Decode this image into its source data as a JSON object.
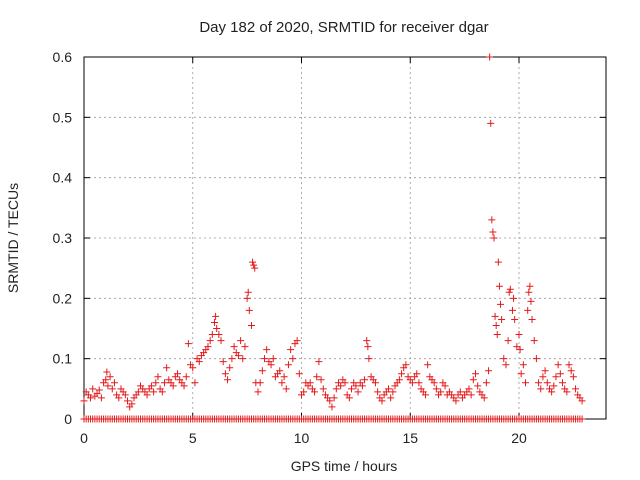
{
  "chart_data": {
    "type": "scatter",
    "title": "Day 182 of 2020, SRMTID for receiver dgar",
    "xlabel": "GPS time / hours",
    "ylabel": "SRMTID / TECUs",
    "xlim": [
      0,
      24
    ],
    "ylim": [
      0,
      0.6
    ],
    "xticks": [
      0,
      5,
      10,
      15,
      20
    ],
    "yticks": [
      0,
      0.1,
      0.2,
      0.3,
      0.4,
      0.5,
      0.6
    ],
    "ytick_labels": [
      "0",
      "0.1",
      "0.2",
      "0.3",
      "0.4",
      "0.5",
      "0.6"
    ],
    "grid": true,
    "marker": "+",
    "series": [
      {
        "name": "SRMTID",
        "color": "#e41a1c",
        "points": [
          [
            0.0,
            0.03
          ],
          [
            0.1,
            0.045
          ],
          [
            0.2,
            0.04
          ],
          [
            0.3,
            0.035
          ],
          [
            0.4,
            0.05
          ],
          [
            0.5,
            0.038
          ],
          [
            0.6,
            0.042
          ],
          [
            0.7,
            0.048
          ],
          [
            0.8,
            0.035
          ],
          [
            0.9,
            0.06
          ],
          [
            1.0,
            0.065
          ],
          [
            1.05,
            0.078
          ],
          [
            1.1,
            0.055
          ],
          [
            1.2,
            0.07
          ],
          [
            1.3,
            0.05
          ],
          [
            1.4,
            0.06
          ],
          [
            1.5,
            0.04
          ],
          [
            1.6,
            0.035
          ],
          [
            1.7,
            0.05
          ],
          [
            1.8,
            0.045
          ],
          [
            1.9,
            0.04
          ],
          [
            2.0,
            0.03
          ],
          [
            2.1,
            0.02
          ],
          [
            2.2,
            0.025
          ],
          [
            2.3,
            0.035
          ],
          [
            2.4,
            0.04
          ],
          [
            2.5,
            0.045
          ],
          [
            2.6,
            0.055
          ],
          [
            2.7,
            0.05
          ],
          [
            2.8,
            0.045
          ],
          [
            2.9,
            0.04
          ],
          [
            3.0,
            0.05
          ],
          [
            3.1,
            0.055
          ],
          [
            3.2,
            0.045
          ],
          [
            3.3,
            0.06
          ],
          [
            3.4,
            0.07
          ],
          [
            3.5,
            0.05
          ],
          [
            3.6,
            0.045
          ],
          [
            3.7,
            0.06
          ],
          [
            3.8,
            0.085
          ],
          [
            3.9,
            0.065
          ],
          [
            4.0,
            0.06
          ],
          [
            4.1,
            0.055
          ],
          [
            4.2,
            0.07
          ],
          [
            4.3,
            0.075
          ],
          [
            4.4,
            0.065
          ],
          [
            4.5,
            0.06
          ],
          [
            4.6,
            0.055
          ],
          [
            4.7,
            0.07
          ],
          [
            4.8,
            0.125
          ],
          [
            4.9,
            0.09
          ],
          [
            5.0,
            0.085
          ],
          [
            5.1,
            0.06
          ],
          [
            5.2,
            0.1
          ],
          [
            5.3,
            0.095
          ],
          [
            5.4,
            0.105
          ],
          [
            5.5,
            0.11
          ],
          [
            5.6,
            0.115
          ],
          [
            5.7,
            0.12
          ],
          [
            5.8,
            0.13
          ],
          [
            5.9,
            0.14
          ],
          [
            6.0,
            0.16
          ],
          [
            6.05,
            0.17
          ],
          [
            6.1,
            0.15
          ],
          [
            6.2,
            0.14
          ],
          [
            6.3,
            0.13
          ],
          [
            6.4,
            0.095
          ],
          [
            6.5,
            0.075
          ],
          [
            6.6,
            0.065
          ],
          [
            6.7,
            0.085
          ],
          [
            6.8,
            0.1
          ],
          [
            6.9,
            0.12
          ],
          [
            7.0,
            0.11
          ],
          [
            7.1,
            0.105
          ],
          [
            7.2,
            0.13
          ],
          [
            7.3,
            0.1
          ],
          [
            7.4,
            0.12
          ],
          [
            7.5,
            0.2
          ],
          [
            7.55,
            0.21
          ],
          [
            7.6,
            0.18
          ],
          [
            7.7,
            0.155
          ],
          [
            7.75,
            0.26
          ],
          [
            7.8,
            0.255
          ],
          [
            7.85,
            0.25
          ],
          [
            7.9,
            0.06
          ],
          [
            8.0,
            0.045
          ],
          [
            8.1,
            0.06
          ],
          [
            8.2,
            0.08
          ],
          [
            8.3,
            0.1
          ],
          [
            8.4,
            0.115
          ],
          [
            8.5,
            0.095
          ],
          [
            8.6,
            0.09
          ],
          [
            8.7,
            0.1
          ],
          [
            8.8,
            0.07
          ],
          [
            8.9,
            0.075
          ],
          [
            9.0,
            0.08
          ],
          [
            9.1,
            0.06
          ],
          [
            9.2,
            0.07
          ],
          [
            9.3,
            0.05
          ],
          [
            9.4,
            0.09
          ],
          [
            9.5,
            0.115
          ],
          [
            9.6,
            0.1
          ],
          [
            9.7,
            0.125
          ],
          [
            9.8,
            0.13
          ],
          [
            9.9,
            0.075
          ],
          [
            10.0,
            0.04
          ],
          [
            10.1,
            0.045
          ],
          [
            10.2,
            0.06
          ],
          [
            10.3,
            0.055
          ],
          [
            10.4,
            0.06
          ],
          [
            10.5,
            0.05
          ],
          [
            10.6,
            0.045
          ],
          [
            10.7,
            0.07
          ],
          [
            10.8,
            0.095
          ],
          [
            10.9,
            0.065
          ],
          [
            11.0,
            0.05
          ],
          [
            11.1,
            0.04
          ],
          [
            11.2,
            0.035
          ],
          [
            11.3,
            0.03
          ],
          [
            11.4,
            0.02
          ],
          [
            11.5,
            0.035
          ],
          [
            11.6,
            0.05
          ],
          [
            11.7,
            0.06
          ],
          [
            11.8,
            0.055
          ],
          [
            11.9,
            0.065
          ],
          [
            12.0,
            0.06
          ],
          [
            12.1,
            0.04
          ],
          [
            12.2,
            0.035
          ],
          [
            12.3,
            0.05
          ],
          [
            12.4,
            0.06
          ],
          [
            12.5,
            0.055
          ],
          [
            12.6,
            0.045
          ],
          [
            12.7,
            0.06
          ],
          [
            12.8,
            0.055
          ],
          [
            12.9,
            0.065
          ],
          [
            13.0,
            0.13
          ],
          [
            13.05,
            0.12
          ],
          [
            13.1,
            0.1
          ],
          [
            13.2,
            0.07
          ],
          [
            13.3,
            0.065
          ],
          [
            13.4,
            0.06
          ],
          [
            13.5,
            0.045
          ],
          [
            13.6,
            0.035
          ],
          [
            13.7,
            0.03
          ],
          [
            13.8,
            0.04
          ],
          [
            13.9,
            0.045
          ],
          [
            14.0,
            0.05
          ],
          [
            14.1,
            0.035
          ],
          [
            14.2,
            0.045
          ],
          [
            14.3,
            0.055
          ],
          [
            14.4,
            0.06
          ],
          [
            14.5,
            0.065
          ],
          [
            14.6,
            0.075
          ],
          [
            14.7,
            0.085
          ],
          [
            14.8,
            0.09
          ],
          [
            14.9,
            0.07
          ],
          [
            15.0,
            0.065
          ],
          [
            15.1,
            0.06
          ],
          [
            15.2,
            0.07
          ],
          [
            15.3,
            0.075
          ],
          [
            15.4,
            0.06
          ],
          [
            15.5,
            0.05
          ],
          [
            15.6,
            0.045
          ],
          [
            15.7,
            0.04
          ],
          [
            15.8,
            0.09
          ],
          [
            15.9,
            0.07
          ],
          [
            16.0,
            0.065
          ],
          [
            16.1,
            0.06
          ],
          [
            16.2,
            0.05
          ],
          [
            16.3,
            0.04
          ],
          [
            16.4,
            0.045
          ],
          [
            16.5,
            0.06
          ],
          [
            16.6,
            0.055
          ],
          [
            16.7,
            0.04
          ],
          [
            16.8,
            0.045
          ],
          [
            16.9,
            0.04
          ],
          [
            17.0,
            0.035
          ],
          [
            17.1,
            0.03
          ],
          [
            17.2,
            0.04
          ],
          [
            17.3,
            0.045
          ],
          [
            17.4,
            0.035
          ],
          [
            17.5,
            0.04
          ],
          [
            17.6,
            0.045
          ],
          [
            17.7,
            0.05
          ],
          [
            17.8,
            0.04
          ],
          [
            17.9,
            0.065
          ],
          [
            18.0,
            0.075
          ],
          [
            18.1,
            0.055
          ],
          [
            18.2,
            0.045
          ],
          [
            18.3,
            0.04
          ],
          [
            18.4,
            0.035
          ],
          [
            18.5,
            0.06
          ],
          [
            18.6,
            0.08
          ],
          [
            18.65,
            0.6
          ],
          [
            18.7,
            0.49
          ],
          [
            18.75,
            0.33
          ],
          [
            18.8,
            0.31
          ],
          [
            18.85,
            0.3
          ],
          [
            18.9,
            0.17
          ],
          [
            18.95,
            0.155
          ],
          [
            19.0,
            0.14
          ],
          [
            19.05,
            0.26
          ],
          [
            19.1,
            0.22
          ],
          [
            19.15,
            0.19
          ],
          [
            19.2,
            0.165
          ],
          [
            19.3,
            0.1
          ],
          [
            19.4,
            0.09
          ],
          [
            19.5,
            0.13
          ],
          [
            19.55,
            0.21
          ],
          [
            19.6,
            0.215
          ],
          [
            19.7,
            0.18
          ],
          [
            19.75,
            0.2
          ],
          [
            19.8,
            0.165
          ],
          [
            19.9,
            0.12
          ],
          [
            20.0,
            0.14
          ],
          [
            20.05,
            0.115
          ],
          [
            20.1,
            0.075
          ],
          [
            20.2,
            0.09
          ],
          [
            20.3,
            0.06
          ],
          [
            20.4,
            0.18
          ],
          [
            20.45,
            0.21
          ],
          [
            20.5,
            0.22
          ],
          [
            20.55,
            0.195
          ],
          [
            20.6,
            0.165
          ],
          [
            20.7,
            0.13
          ],
          [
            20.8,
            0.1
          ],
          [
            20.9,
            0.06
          ],
          [
            21.0,
            0.05
          ],
          [
            21.1,
            0.07
          ],
          [
            21.2,
            0.08
          ],
          [
            21.3,
            0.06
          ],
          [
            21.4,
            0.05
          ],
          [
            21.5,
            0.045
          ],
          [
            21.6,
            0.055
          ],
          [
            21.7,
            0.07
          ],
          [
            21.8,
            0.09
          ],
          [
            21.9,
            0.075
          ],
          [
            22.0,
            0.06
          ],
          [
            22.1,
            0.05
          ],
          [
            22.2,
            0.045
          ],
          [
            22.3,
            0.09
          ],
          [
            22.4,
            0.08
          ],
          [
            22.5,
            0.07
          ],
          [
            22.6,
            0.05
          ],
          [
            22.7,
            0.04
          ],
          [
            22.8,
            0.035
          ],
          [
            22.9,
            0.03
          ]
        ],
        "baseline": {
          "y": 0,
          "x_start": 0.0,
          "x_end": 22.9,
          "x_step": 0.1
        }
      }
    ]
  }
}
